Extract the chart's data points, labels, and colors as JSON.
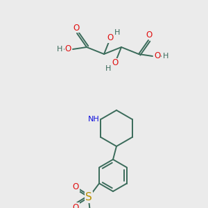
{
  "bg_color": "#ebebeb",
  "bond_color": "#3a6b5a",
  "bond_width": 1.4,
  "atom_colors": {
    "O": "#e01010",
    "N": "#1010dd",
    "S": "#b89000",
    "H": "#3a6b5a",
    "C": "#3a6b5a"
  },
  "font_size": 7.0,
  "fig_size": [
    3.0,
    3.0
  ],
  "dpi": 100
}
